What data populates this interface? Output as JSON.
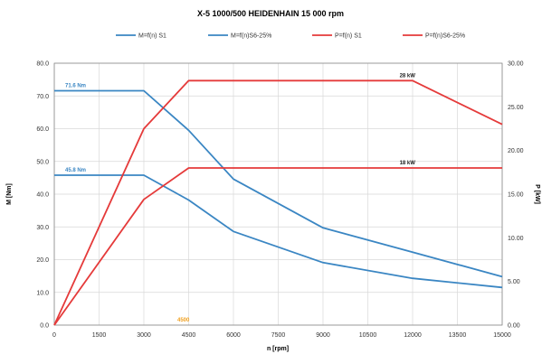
{
  "chart_data": {
    "type": "line",
    "title": "X-5 1000/500 HEIDENHAIN 15 000 rpm",
    "xlabel": "n [rpm]",
    "ylabel_left": "M [Nm]",
    "ylabel_right": "P [kW]",
    "xlim": [
      0,
      15000
    ],
    "ylim_left": [
      0,
      80
    ],
    "ylim_right": [
      0,
      30
    ],
    "x_ticks": [
      "0",
      "1500",
      "3000",
      "4500",
      "6000",
      "7500",
      "9000",
      "10500",
      "12000",
      "13500",
      "15000"
    ],
    "y_ticks_left": [
      "0.0",
      "10.0",
      "20.0",
      "30.0",
      "40.0",
      "50.0",
      "60.0",
      "70.0",
      "80.0"
    ],
    "y_ticks_right": [
      "0.00",
      "5.00",
      "10.00",
      "15.00",
      "20.00",
      "25.00",
      "30.00"
    ],
    "grid": true,
    "legend_position": "top",
    "series": [
      {
        "name": "M=f(n) S1",
        "axis": "left",
        "color": "#3a86c3",
        "x": [
          0,
          3000,
          4500,
          6000,
          9000,
          12000,
          15000
        ],
        "y": [
          45.8,
          45.8,
          38.2,
          28.6,
          19.1,
          14.3,
          11.5
        ]
      },
      {
        "name": "M=f(n)S6-25%",
        "axis": "left",
        "color": "#3a86c3",
        "x": [
          0,
          3000,
          4500,
          6000,
          9000,
          12000,
          15000
        ],
        "y": [
          71.6,
          71.6,
          59.5,
          44.6,
          29.7,
          22.3,
          14.8
        ]
      },
      {
        "name": "P=f(n) S1",
        "axis": "right",
        "color": "#e53a3a",
        "x": [
          0,
          3000,
          4500,
          15000
        ],
        "y": [
          0,
          14.4,
          18,
          18
        ]
      },
      {
        "name": "P=f(n)S6-25%",
        "axis": "right",
        "color": "#e53a3a",
        "x": [
          0,
          3000,
          4500,
          12000,
          15000
        ],
        "y": [
          0,
          22.5,
          28,
          28,
          23
        ]
      }
    ],
    "annotations": [
      {
        "text": "71.6 Nm",
        "x": 0,
        "y": 71.6,
        "axis": "left",
        "color": "#3a86c3"
      },
      {
        "text": "45.8 Nm",
        "x": 0,
        "y": 45.8,
        "axis": "left",
        "color": "#3a86c3"
      },
      {
        "text": "28 kW",
        "x": 11200,
        "y": 28,
        "axis": "right",
        "color": "#222222"
      },
      {
        "text": "18 kW",
        "x": 11200,
        "y": 18,
        "axis": "right",
        "color": "#222222"
      },
      {
        "text": "4500",
        "x": 4000,
        "y": 0,
        "axis": "left",
        "color": "#f0a020"
      }
    ]
  }
}
